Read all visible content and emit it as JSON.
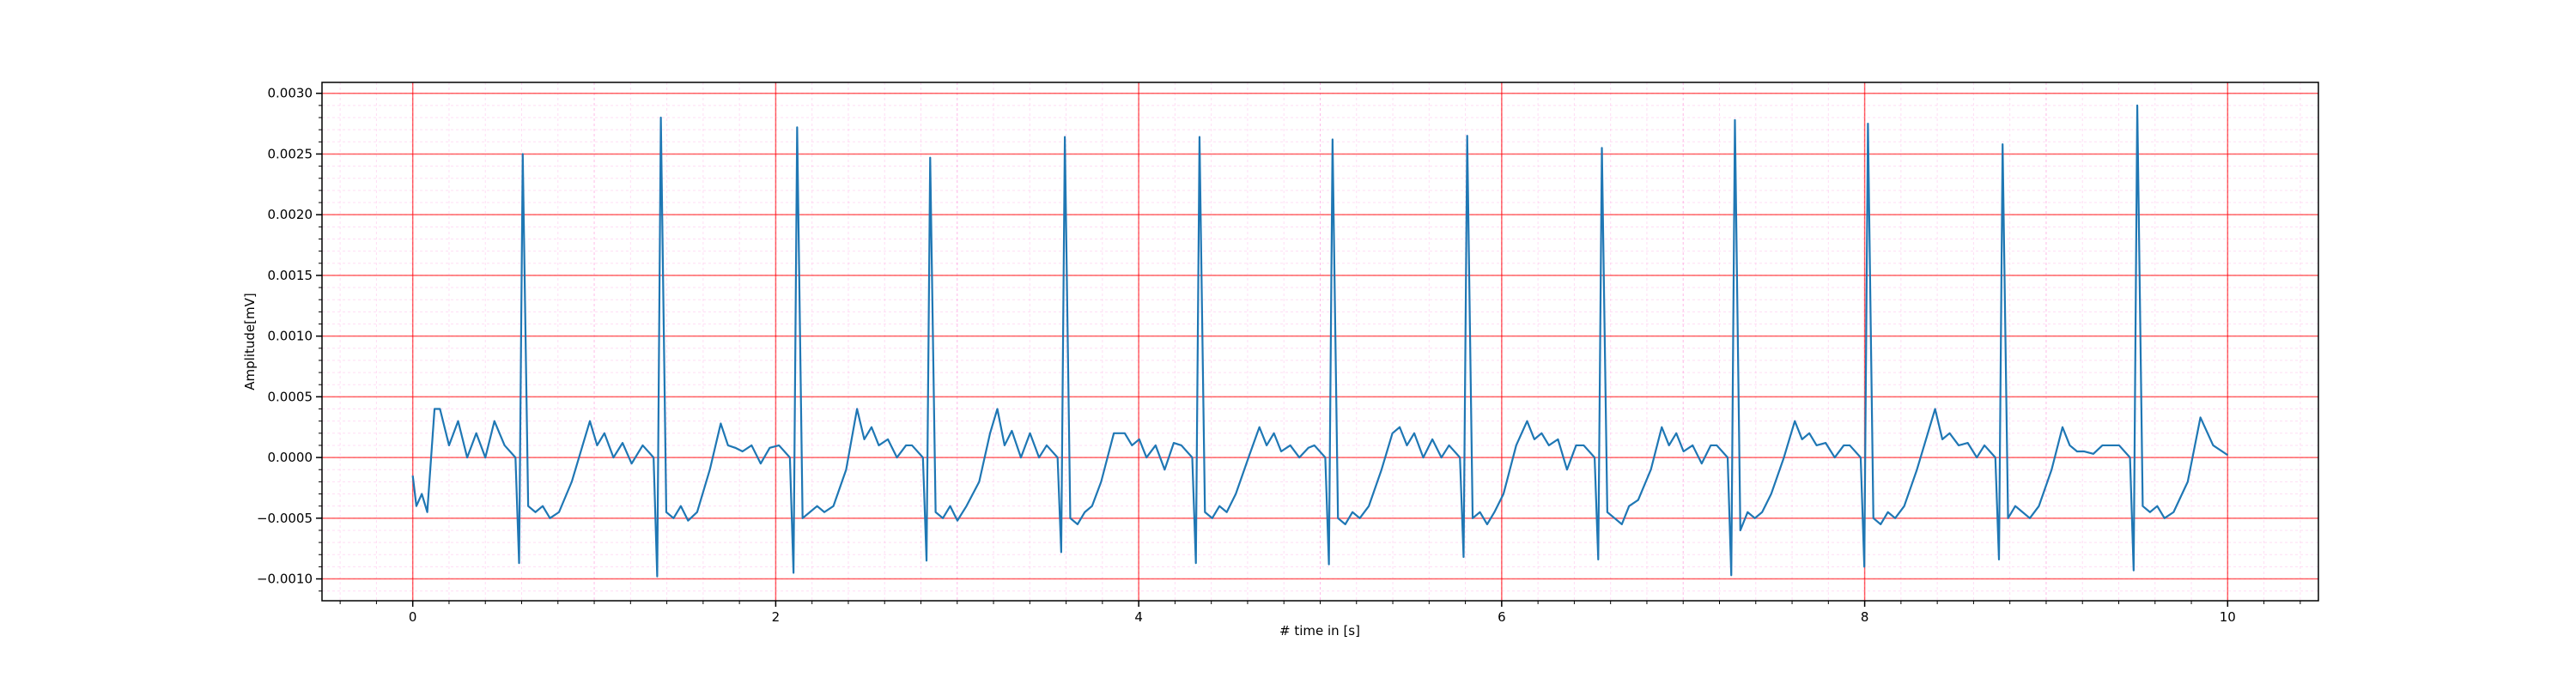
{
  "chart_data": {
    "type": "line",
    "xlabel": "# time in [s]",
    "ylabel": "Amplitude[mV]",
    "color": "#1f77b4",
    "grid": true,
    "grid_color": "#ff0000",
    "minor_grid": true,
    "minor_grid_color": "#ff66cc",
    "xlim": [
      -0.5,
      10.5
    ],
    "xticks": [
      0,
      2,
      4,
      6,
      8,
      10
    ],
    "ylim": [
      -0.00118,
      0.00309
    ],
    "yticks": [
      {
        "value": -0.001,
        "label": "−0.0010"
      },
      {
        "value": -0.0005,
        "label": "−0.0005"
      },
      {
        "value": 0,
        "label": "0.0000"
      },
      {
        "value": 0.0005,
        "label": "0.0005"
      },
      {
        "value": 0.001,
        "label": "0.0010"
      },
      {
        "value": 0.0015,
        "label": "0.0015"
      },
      {
        "value": 0.002,
        "label": "0.0020"
      },
      {
        "value": 0.0025,
        "label": "0.0025"
      },
      {
        "value": 0.003,
        "label": "0.0030"
      }
    ],
    "x": [
      0,
      0.02,
      0.05,
      0.08,
      0.12,
      0.15,
      0.2,
      0.25,
      0.3,
      0.35,
      0.4,
      0.45,
      0.506,
      0.566,
      0.586,
      0.606,
      0.636,
      0.676,
      0.716,
      0.756,
      0.806,
      0.876,
      0.936,
      0.976,
      1.016,
      1.056,
      1.106,
      1.156,
      1.206,
      1.267,
      1.327,
      1.347,
      1.367,
      1.397,
      1.437,
      1.477,
      1.517,
      1.567,
      1.637,
      1.697,
      1.737,
      1.777,
      1.817,
      1.867,
      1.917,
      1.967,
      2.018,
      2.078,
      2.098,
      2.118,
      2.148,
      2.188,
      2.228,
      2.268,
      2.318,
      2.388,
      2.448,
      2.488,
      2.528,
      2.568,
      2.618,
      2.668,
      2.718,
      2.751,
      2.811,
      2.831,
      2.851,
      2.881,
      2.921,
      2.961,
      3.001,
      3.051,
      3.121,
      3.181,
      3.221,
      3.261,
      3.301,
      3.351,
      3.401,
      3.451,
      3.493,
      3.553,
      3.573,
      3.593,
      3.623,
      3.663,
      3.703,
      3.743,
      3.793,
      3.863,
      3.923,
      3.963,
      4.003,
      4.043,
      4.093,
      4.143,
      4.193,
      4.235,
      4.295,
      4.315,
      4.335,
      4.365,
      4.405,
      4.445,
      4.485,
      4.535,
      4.605,
      4.665,
      4.705,
      4.745,
      4.785,
      4.835,
      4.885,
      4.935,
      4.968,
      5.028,
      5.048,
      5.068,
      5.098,
      5.138,
      5.178,
      5.218,
      5.268,
      5.338,
      5.398,
      5.438,
      5.478,
      5.518,
      5.568,
      5.618,
      5.668,
      5.71,
      5.77,
      5.79,
      5.81,
      5.84,
      5.88,
      5.92,
      5.96,
      6.01,
      6.08,
      6.14,
      6.18,
      6.22,
      6.26,
      6.31,
      6.36,
      6.41,
      6.452,
      6.512,
      6.532,
      6.552,
      6.582,
      6.622,
      6.662,
      6.702,
      6.752,
      6.822,
      6.882,
      6.922,
      6.962,
      7.002,
      7.052,
      7.102,
      7.152,
      7.185,
      7.245,
      7.265,
      7.285,
      7.315,
      7.355,
      7.395,
      7.435,
      7.485,
      7.555,
      7.615,
      7.655,
      7.695,
      7.735,
      7.785,
      7.835,
      7.885,
      7.918,
      7.978,
      7.998,
      8.018,
      8.048,
      8.088,
      8.128,
      8.168,
      8.218,
      8.288,
      8.348,
      8.388,
      8.428,
      8.468,
      8.518,
      8.568,
      8.618,
      8.66,
      8.72,
      8.74,
      8.76,
      8.79,
      8.83,
      8.87,
      8.91,
      8.96,
      9.03,
      9.09,
      9.13,
      9.17,
      9.21,
      9.26,
      9.31,
      9.36,
      9.402,
      9.462,
      9.482,
      9.502,
      9.532,
      9.572,
      9.612,
      9.652,
      9.702,
      9.78,
      9.85,
      9.92,
      10.0
    ],
    "values": [
      -0.00015,
      -0.0004,
      -0.0003,
      -0.00045,
      0.0004,
      0.0004,
      0.0001,
      0.0003,
      0.0,
      0.0002,
      0.0,
      0.0003,
      0.0001,
      0.0,
      -0.00087,
      0.0025,
      -0.0004,
      -0.00045,
      -0.0004,
      -0.0005,
      -0.00045,
      -0.0002,
      0.0001,
      0.0003,
      0.0001,
      0.0002,
      0.0,
      0.00012,
      -5e-05,
      0.0001,
      0.0,
      -0.00098,
      0.0028,
      -0.00045,
      -0.0005,
      -0.0004,
      -0.00052,
      -0.00045,
      -0.0001,
      0.00028,
      0.0001,
      8e-05,
      5e-05,
      0.0001,
      -5e-05,
      8e-05,
      0.0001,
      0.0,
      -0.00095,
      0.00272,
      -0.0005,
      -0.00045,
      -0.0004,
      -0.00045,
      -0.0004,
      -0.0001,
      0.0004,
      0.00015,
      0.00025,
      0.0001,
      0.00015,
      0.0,
      0.0001,
      0.0001,
      0.0,
      -0.00085,
      0.00247,
      -0.00045,
      -0.0005,
      -0.0004,
      -0.00052,
      -0.0004,
      -0.0002,
      0.0002,
      0.0004,
      0.0001,
      0.00022,
      0.0,
      0.0002,
      0.0,
      0.0001,
      0.0,
      -0.00078,
      0.00264,
      -0.0005,
      -0.00055,
      -0.00045,
      -0.0004,
      -0.0002,
      0.0002,
      0.0002,
      0.0001,
      0.00015,
      0.0,
      0.0001,
      -0.0001,
      0.00012,
      0.0001,
      0.0,
      -0.00087,
      0.00264,
      -0.00045,
      -0.0005,
      -0.0004,
      -0.00045,
      -0.0003,
      0.0,
      0.00025,
      0.0001,
      0.0002,
      5e-05,
      0.0001,
      0.0,
      8e-05,
      0.0001,
      0.0,
      -0.00088,
      0.00262,
      -0.0005,
      -0.00055,
      -0.00045,
      -0.0005,
      -0.0004,
      -0.0001,
      0.0002,
      0.00025,
      0.0001,
      0.0002,
      0.0,
      0.00015,
      0.0,
      0.0001,
      0.0,
      -0.00082,
      0.00265,
      -0.0005,
      -0.00045,
      -0.00055,
      -0.00045,
      -0.0003,
      0.0001,
      0.0003,
      0.00015,
      0.0002,
      0.0001,
      0.00015,
      -0.0001,
      0.0001,
      0.0001,
      0.0,
      -0.00084,
      0.00255,
      -0.00045,
      -0.0005,
      -0.00055,
      -0.0004,
      -0.00035,
      -0.0001,
      0.00025,
      0.0001,
      0.0002,
      5e-05,
      0.0001,
      -5e-05,
      0.0001,
      0.0001,
      0.0,
      -0.00097,
      0.00278,
      -0.0006,
      -0.00045,
      -0.0005,
      -0.00045,
      -0.0003,
      0.0,
      0.0003,
      0.00015,
      0.0002,
      0.0001,
      0.00012,
      0.0,
      0.0001,
      0.0001,
      0.0,
      -0.0009,
      0.00275,
      -0.0005,
      -0.00055,
      -0.00045,
      -0.0005,
      -0.0004,
      -0.0001,
      0.0002,
      0.0004,
      0.00015,
      0.0002,
      0.0001,
      0.00012,
      0.0,
      0.0001,
      0.0,
      -0.00084,
      0.00258,
      -0.0005,
      -0.0004,
      -0.00045,
      -0.0005,
      -0.0004,
      -0.0001,
      0.00025,
      0.0001,
      5e-05,
      5e-05,
      3e-05,
      0.0001,
      0.0001,
      0.0001,
      0.0,
      -0.00093,
      0.0029,
      -0.0004,
      -0.00045,
      -0.0004,
      -0.0005,
      -0.00045,
      -0.0002,
      0.00033,
      0.0001,
      2e-05
    ]
  }
}
